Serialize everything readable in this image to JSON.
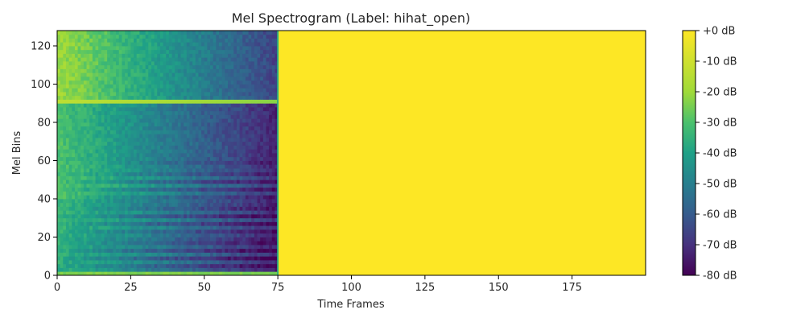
{
  "chart_data": {
    "type": "heatmap",
    "title": "Mel Spectrogram (Label: hihat_open)",
    "xlabel": "Time Frames",
    "ylabel": "Mel Bins",
    "xlim": [
      0,
      200
    ],
    "ylim": [
      0,
      128
    ],
    "x_ticks": [
      0,
      25,
      50,
      75,
      100,
      125,
      150,
      175
    ],
    "y_ticks": [
      0,
      20,
      40,
      60,
      80,
      100,
      120
    ],
    "colormap": "viridis",
    "colorbar": {
      "range_db": [
        -80,
        0
      ],
      "ticks": [
        "+0 dB",
        "-10 dB",
        "-20 dB",
        "-30 dB",
        "-40 dB",
        "-50 dB",
        "-60 dB",
        "-70 dB",
        "-80 dB"
      ]
    },
    "signal_frames": 75,
    "padding_value_db": 0,
    "approx_level_db": [
      {
        "mel_bin_range": [
          0,
          2
        ],
        "time_range": [
          0,
          75
        ],
        "db": -25
      },
      {
        "mel_bin_range": [
          2,
          40
        ],
        "time_range": [
          0,
          40
        ],
        "db": -38
      },
      {
        "mel_bin_range": [
          2,
          40
        ],
        "time_range": [
          40,
          75
        ],
        "db": -62
      },
      {
        "mel_bin_range": [
          40,
          90
        ],
        "time_range": [
          0,
          35
        ],
        "db": -30
      },
      {
        "mel_bin_range": [
          40,
          90
        ],
        "time_range": [
          35,
          75
        ],
        "db": -65
      },
      {
        "mel_bin_range": [
          90,
          92
        ],
        "time_range": [
          0,
          75
        ],
        "db": -14
      },
      {
        "mel_bin_range": [
          92,
          128
        ],
        "time_range": [
          0,
          45
        ],
        "db": -22
      },
      {
        "mel_bin_range": [
          92,
          128
        ],
        "time_range": [
          45,
          75
        ],
        "db": -62
      },
      {
        "mel_bin_range": [
          0,
          128
        ],
        "time_range": [
          75,
          200
        ],
        "db": 0
      }
    ]
  }
}
